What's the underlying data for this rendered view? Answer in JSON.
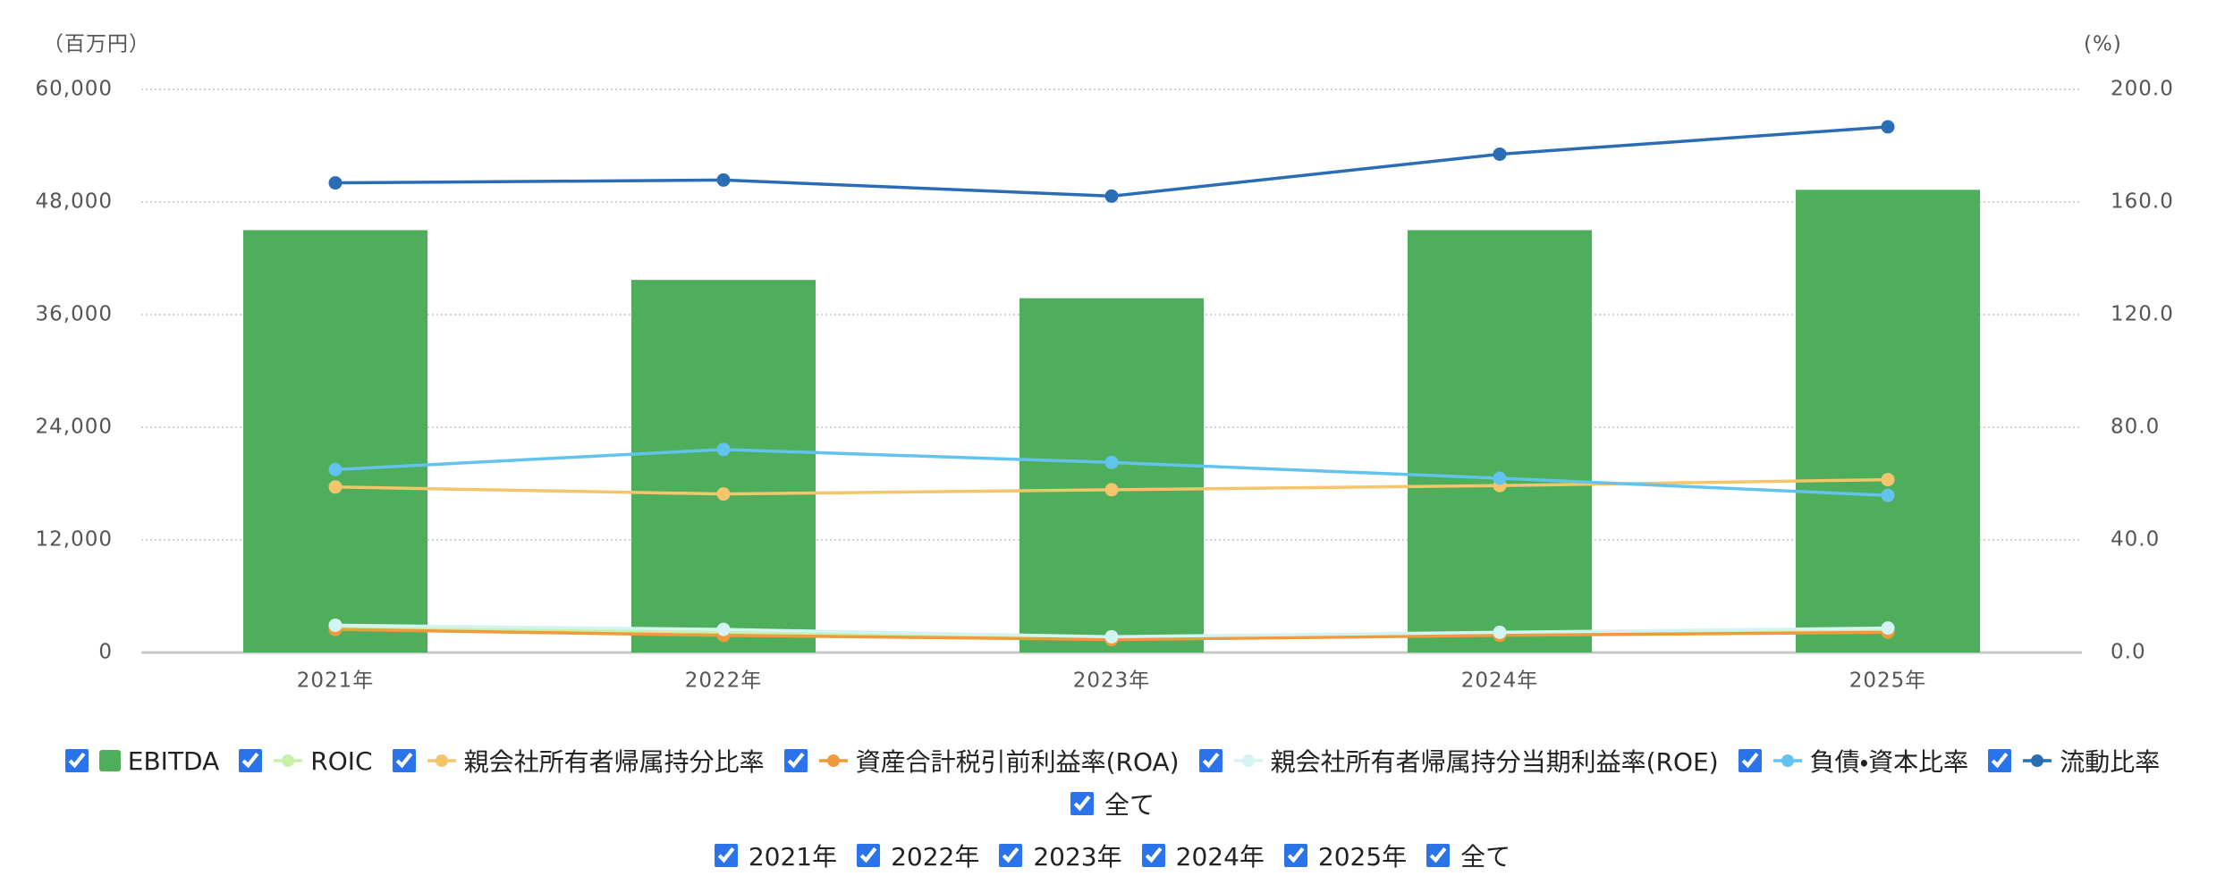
{
  "chart_data": {
    "type": "bar-line",
    "y_unit": "（百万円）",
    "y2_unit": "(%)",
    "categories": [
      "2021年",
      "2022年",
      "2023年",
      "2024年",
      "2025年"
    ],
    "ylim": [
      0,
      60000
    ],
    "yticks": [
      0,
      {
        "value": 12000,
        "label": "12,000"
      },
      {
        "value": 24000,
        "label": "24,000"
      },
      {
        "value": 36000,
        "label": "36,000"
      },
      {
        "value": 48000,
        "label": "48,000"
      },
      {
        "value": 60000,
        "label": "60,000"
      }
    ],
    "y2lim": [
      0,
      200
    ],
    "y2ticks": [
      {
        "value": 0,
        "label": "0.0"
      },
      {
        "value": 40,
        "label": "40.0"
      },
      {
        "value": 80,
        "label": "80.0"
      },
      {
        "value": 120,
        "label": "120.0"
      },
      {
        "value": 160,
        "label": "160.0"
      },
      {
        "value": 200,
        "label": "200.0"
      }
    ],
    "grid": true,
    "all_label": "全て",
    "series": [
      {
        "name": "EBITDA",
        "type": "bar",
        "color": "#4fae5b",
        "values": [
          45000,
          39700,
          37750,
          45000,
          49300
        ]
      },
      {
        "name": "ROIC",
        "type": "line",
        "axis": "y2",
        "color": "#c8f0a8",
        "values": [
          8.7,
          7.2,
          5.1,
          6.6,
          7.7
        ]
      },
      {
        "name": "親会社所有者帰属持分比率",
        "type": "line",
        "axis": "y2",
        "color": "#f5c56b",
        "values": [
          58.8,
          56.3,
          57.8,
          59.3,
          61.4
        ]
      },
      {
        "name": "資産合計税引前利益率(ROA)",
        "type": "line",
        "axis": "y2",
        "color": "#ef9a3c",
        "values": [
          8.2,
          6.1,
          4.6,
          6.1,
          7.2
        ]
      },
      {
        "name": "親会社所有者帰属持分当期利益率(ROE)",
        "type": "line",
        "axis": "y2",
        "color": "#d4f4f4",
        "values": [
          9.7,
          8.2,
          5.6,
          7.2,
          8.7
        ]
      },
      {
        "name": "負債・資本比率",
        "type": "line",
        "axis": "y2",
        "color": "#62c3ef",
        "values": [
          65.0,
          72.1,
          67.5,
          61.9,
          55.8
        ]
      },
      {
        "name": "流動比率",
        "type": "line",
        "axis": "y2",
        "color": "#2a6db5",
        "values": [
          166.8,
          167.8,
          162.1,
          177.0,
          186.7
        ]
      }
    ]
  }
}
